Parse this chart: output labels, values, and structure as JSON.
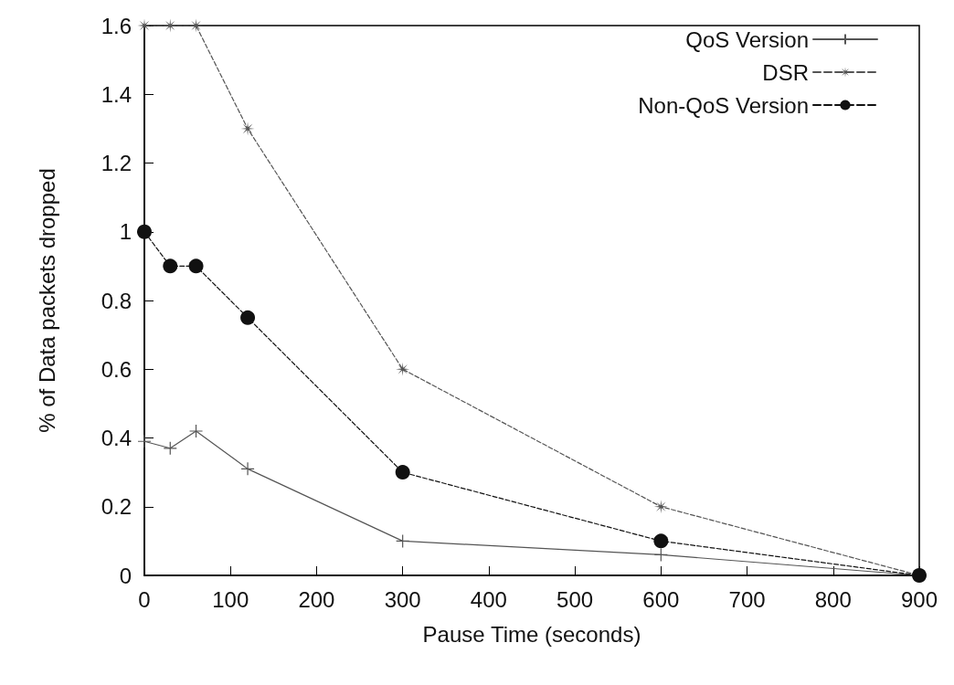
{
  "chart_data": {
    "type": "line",
    "xlabel": "Pause Time (seconds)",
    "ylabel": "% of Data packets dropped",
    "x": [
      0,
      30,
      60,
      120,
      300,
      600,
      900
    ],
    "series": [
      {
        "name": "QoS Version",
        "color": "#555555",
        "values": [
          0.39,
          0.37,
          0.42,
          0.31,
          0.1,
          0.06,
          0
        ],
        "marker": "cross",
        "line_style": "solid"
      },
      {
        "name": "DSR",
        "color": "#555555",
        "values": [
          1.6,
          1.6,
          1.6,
          1.3,
          0.6,
          0.2,
          0
        ],
        "marker": "star",
        "line_style": "dashed"
      },
      {
        "name": "Non-QoS Version",
        "color": "#111111",
        "values": [
          1.0,
          0.9,
          0.9,
          0.75,
          0.3,
          0.1,
          0
        ],
        "marker": "circle",
        "line_style": "dashed"
      }
    ],
    "xlim": [
      0,
      900
    ],
    "xticks": [
      0,
      100,
      200,
      300,
      400,
      500,
      600,
      700,
      800,
      900
    ],
    "ylim": [
      0,
      1.6
    ],
    "yticks": [
      0,
      0.2,
      0.4,
      0.6,
      0.8,
      1,
      1.2,
      1.4,
      1.6
    ],
    "grid": false,
    "legend": "top right"
  }
}
